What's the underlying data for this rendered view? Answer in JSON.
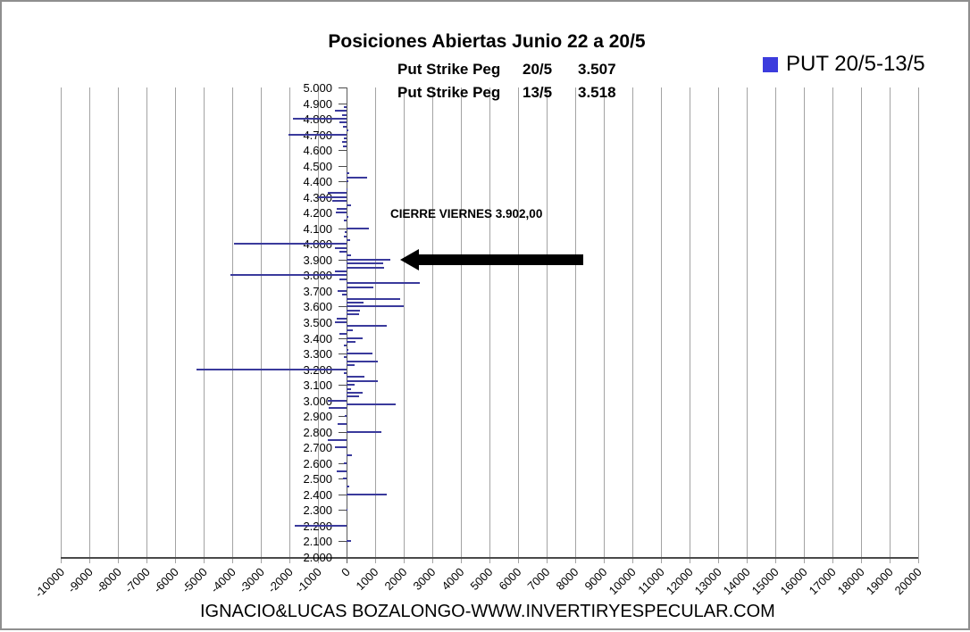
{
  "title": "Posiciones Abiertas Junio 22 a 20/5",
  "subtitle": {
    "rows": [
      {
        "label": "Put Strike Peg",
        "date": "20/5",
        "value": "3.507"
      },
      {
        "label": "Put Strike Peg",
        "date": "13/5",
        "value": "3.518"
      }
    ]
  },
  "legend": {
    "label": "PUT 20/5-13/5",
    "swatch_color": "#3c3cdd"
  },
  "annotation": {
    "text": "CIERRE VIERNES 3.902,00",
    "points_at_strike": "3.900"
  },
  "footer": "IGNACIO&LUCAS BOZALONGO-WWW.INVERTIRYESPECULAR.COM",
  "chart_data": {
    "type": "bar",
    "orientation": "horizontal",
    "title": "Posiciones Abiertas Junio 22 a 20/5",
    "legend_entries": [
      "PUT 20/5-13/5"
    ],
    "legend_position": "top-right",
    "grid": "vertical-only",
    "bar_color": "#3a3a9c",
    "gridline_color": "#a3a3a3",
    "x_axis": {
      "min": -10000,
      "max": 20000,
      "step": 1000,
      "label_rotation_deg": -45
    },
    "y_axis": {
      "min": 2.0,
      "max": 5.0,
      "label_step": 0.1,
      "label_format": "x.xxx"
    },
    "series": [
      {
        "name": "PUT 20/5-13/5",
        "points": [
          {
            "strike": 4.875,
            "value": -100
          },
          {
            "strike": 4.85,
            "value": -400
          },
          {
            "strike": 4.825,
            "value": -150
          },
          {
            "strike": 4.8,
            "value": -1870
          },
          {
            "strike": 4.775,
            "value": -250
          },
          {
            "strike": 4.75,
            "value": -120
          },
          {
            "strike": 4.725,
            "value": 60
          },
          {
            "strike": 4.7,
            "value": -2030
          },
          {
            "strike": 4.675,
            "value": -100
          },
          {
            "strike": 4.65,
            "value": -170
          },
          {
            "strike": 4.625,
            "value": -120
          },
          {
            "strike": 4.45,
            "value": 100
          },
          {
            "strike": 4.425,
            "value": 710
          },
          {
            "strike": 4.4,
            "value": 50
          },
          {
            "strike": 4.35,
            "value": 30
          },
          {
            "strike": 4.325,
            "value": -650
          },
          {
            "strike": 4.3,
            "value": -1000
          },
          {
            "strike": 4.275,
            "value": -500
          },
          {
            "strike": 4.25,
            "value": 170
          },
          {
            "strike": 4.225,
            "value": -350
          },
          {
            "strike": 4.2,
            "value": -375
          },
          {
            "strike": 4.175,
            "value": 60
          },
          {
            "strike": 4.15,
            "value": -90
          },
          {
            "strike": 4.1,
            "value": 790
          },
          {
            "strike": 4.075,
            "value": -60
          },
          {
            "strike": 4.05,
            "value": -100
          },
          {
            "strike": 4.025,
            "value": 120
          },
          {
            "strike": 4.0,
            "value": -3950
          },
          {
            "strike": 3.975,
            "value": -400
          },
          {
            "strike": 3.95,
            "value": -250
          },
          {
            "strike": 3.925,
            "value": 170
          },
          {
            "strike": 3.9,
            "value": 1530
          },
          {
            "strike": 3.875,
            "value": 1290
          },
          {
            "strike": 3.85,
            "value": 1300
          },
          {
            "strike": 3.825,
            "value": -420
          },
          {
            "strike": 3.8,
            "value": -4050
          },
          {
            "strike": 3.775,
            "value": -250
          },
          {
            "strike": 3.75,
            "value": 2550
          },
          {
            "strike": 3.725,
            "value": 950
          },
          {
            "strike": 3.7,
            "value": -310
          },
          {
            "strike": 3.675,
            "value": -170
          },
          {
            "strike": 3.65,
            "value": 1880
          },
          {
            "strike": 3.625,
            "value": 580
          },
          {
            "strike": 3.6,
            "value": 1990
          },
          {
            "strike": 3.575,
            "value": 480
          },
          {
            "strike": 3.55,
            "value": 440
          },
          {
            "strike": 3.525,
            "value": -350
          },
          {
            "strike": 3.5,
            "value": -400
          },
          {
            "strike": 3.475,
            "value": 1400
          },
          {
            "strike": 3.45,
            "value": 220
          },
          {
            "strike": 3.425,
            "value": -260
          },
          {
            "strike": 3.4,
            "value": 560
          },
          {
            "strike": 3.375,
            "value": 320
          },
          {
            "strike": 3.35,
            "value": -100
          },
          {
            "strike": 3.325,
            "value": 60
          },
          {
            "strike": 3.3,
            "value": 900
          },
          {
            "strike": 3.275,
            "value": -100
          },
          {
            "strike": 3.25,
            "value": 1080
          },
          {
            "strike": 3.225,
            "value": 270
          },
          {
            "strike": 3.2,
            "value": -5250
          },
          {
            "strike": 3.175,
            "value": -80
          },
          {
            "strike": 3.15,
            "value": 630
          },
          {
            "strike": 3.125,
            "value": 1080
          },
          {
            "strike": 3.1,
            "value": 280
          },
          {
            "strike": 3.075,
            "value": 170
          },
          {
            "strike": 3.05,
            "value": 560
          },
          {
            "strike": 3.025,
            "value": 430
          },
          {
            "strike": 3.0,
            "value": -650
          },
          {
            "strike": 2.975,
            "value": 1730
          },
          {
            "strike": 2.95,
            "value": -620
          },
          {
            "strike": 2.9,
            "value": -60
          },
          {
            "strike": 2.85,
            "value": -300
          },
          {
            "strike": 2.8,
            "value": 1210
          },
          {
            "strike": 2.75,
            "value": -650
          },
          {
            "strike": 2.7,
            "value": -400
          },
          {
            "strike": 2.65,
            "value": 200
          },
          {
            "strike": 2.6,
            "value": -90
          },
          {
            "strike": 2.55,
            "value": -350
          },
          {
            "strike": 2.5,
            "value": -120
          },
          {
            "strike": 2.45,
            "value": 90
          },
          {
            "strike": 2.4,
            "value": 1400
          },
          {
            "strike": 2.3,
            "value": 40
          },
          {
            "strike": 2.2,
            "value": -1800
          },
          {
            "strike": 2.1,
            "value": 150
          }
        ]
      }
    ]
  }
}
